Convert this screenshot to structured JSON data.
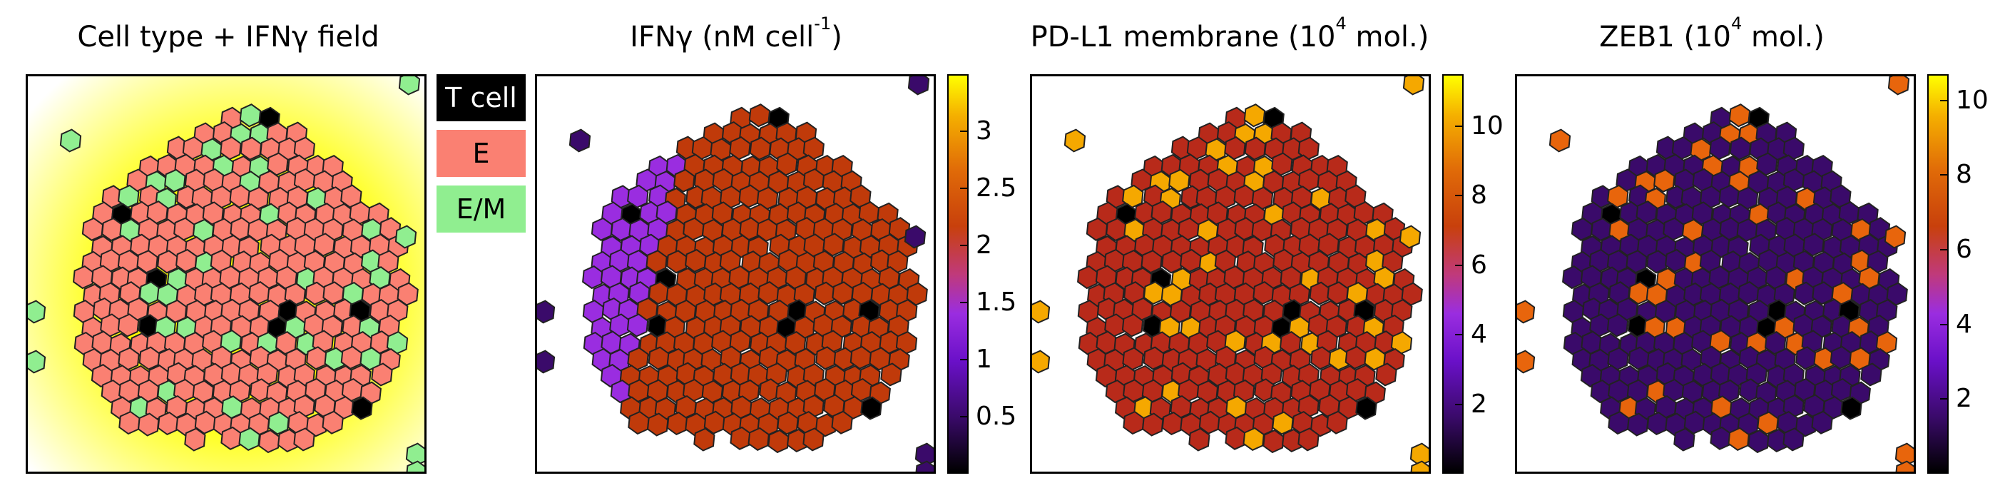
{
  "panels": [
    {
      "title": "Cell type + IFNγ field"
    },
    {
      "title_main": "IFNγ (nM cell",
      "title_sup": "-1",
      "title_end": ")"
    },
    {
      "title_main": "PD-L1 membrane (10",
      "title_sup": "4",
      "title_end": " mol.)"
    },
    {
      "title_main": "ZEB1 (10",
      "title_sup": "4",
      "title_end": " mol.)"
    }
  ],
  "legend": [
    {
      "label": "T cell",
      "color": "#000000",
      "text_color": "#ffffff"
    },
    {
      "label": "E",
      "color": "#fa8072",
      "text_color": "#000000"
    },
    {
      "label": "E/M",
      "color": "#90ee90",
      "text_color": "#000000"
    }
  ],
  "colorbars": [
    {
      "ticks": [
        "3",
        "2.5",
        "2",
        "1.5",
        "1",
        "0.5"
      ],
      "tick_values": [
        3,
        2.5,
        2,
        1.5,
        1,
        0.5
      ],
      "range": [
        0,
        3.5
      ]
    },
    {
      "ticks": [
        "10",
        "8",
        "6",
        "4",
        "2"
      ],
      "tick_values": [
        10,
        8,
        6,
        4,
        2
      ],
      "range": [
        0,
        11.5
      ]
    },
    {
      "ticks": [
        "10",
        "8",
        "6",
        "4",
        "2"
      ],
      "tick_values": [
        10,
        8,
        6,
        4,
        2
      ],
      "range": [
        0,
        10.7
      ]
    }
  ],
  "colors": {
    "t_cell": "#000000",
    "epithelial": "#fa8072",
    "e_m": "#90ee90",
    "ifn_field_high": "#ffff00",
    "ifn_field_low": "#ffffff",
    "ifn_high_cell": "#c03a0a",
    "ifn_low_cell": "#9a2de0",
    "pdl1_cell": "#b82a1a",
    "pdl1_high_cell": "#f5a800",
    "zeb1_cell": "#3a0a6a",
    "zeb1_high_cell": "#e8650c"
  }
}
